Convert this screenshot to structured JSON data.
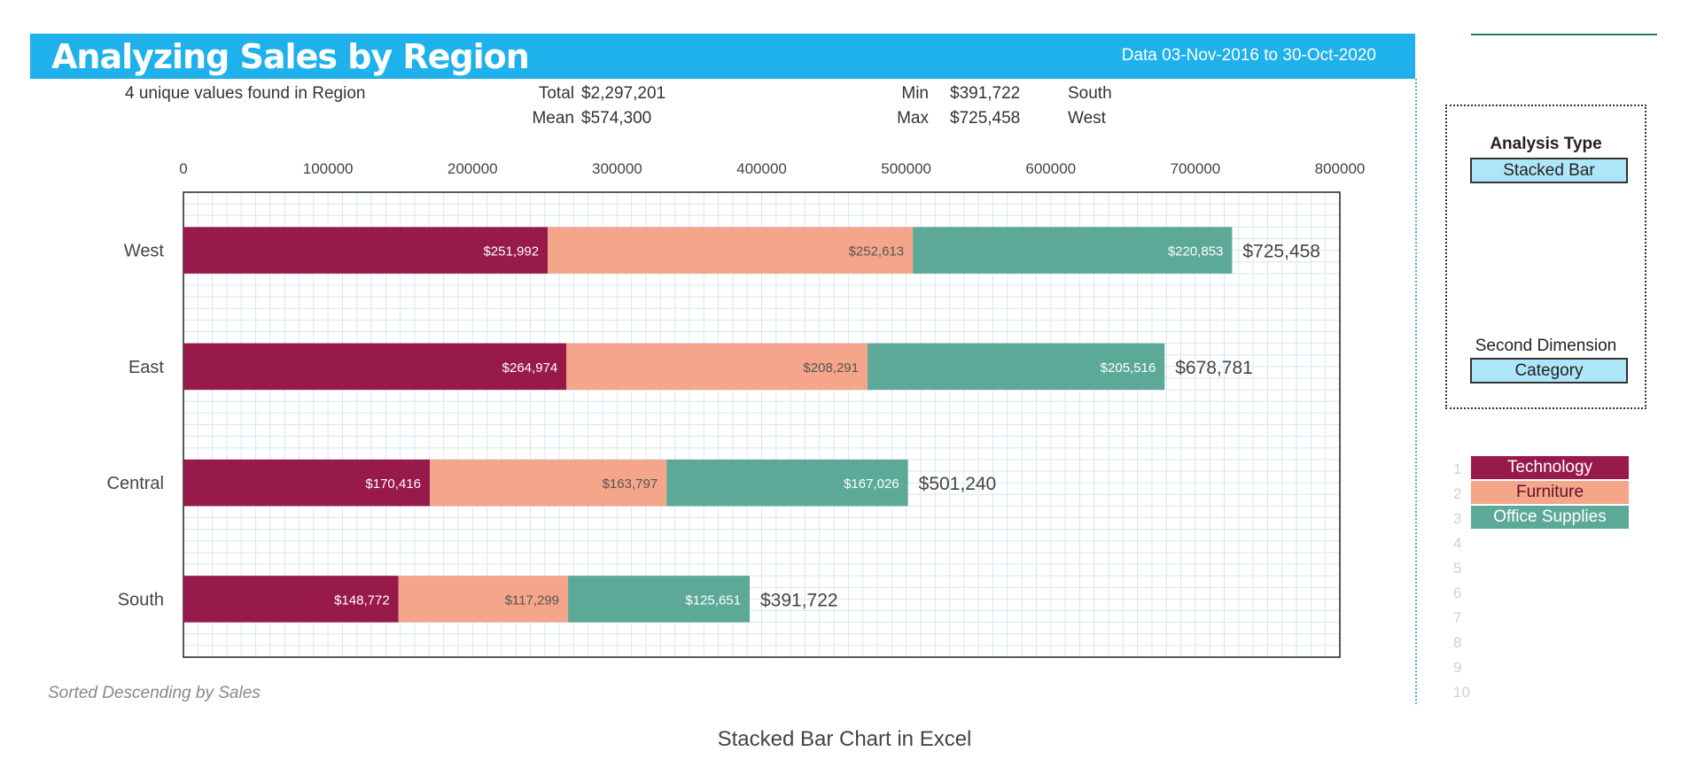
{
  "header": {
    "title": "Analyzing Sales by Region",
    "date_range": "Data 03-Nov-2016 to 30-Oct-2020"
  },
  "summary": {
    "unique_text": "4 unique values found in Region",
    "total_label": "Total",
    "total_value": "$2,297,201",
    "mean_label": "Mean",
    "mean_value": "$574,300",
    "min_label": "Min",
    "min_value": "$391,722",
    "min_region": "South",
    "max_label": "Max",
    "max_value": "$725,458",
    "max_region": "West"
  },
  "colors": {
    "header": "#1fb1eb",
    "technology": "#971a4a",
    "furniture": "#f4a58a",
    "office_supplies": "#5da998"
  },
  "chart_data": {
    "type": "bar",
    "orientation": "horizontal",
    "stacked": true,
    "categories": [
      "West",
      "East",
      "Central",
      "South"
    ],
    "series": [
      {
        "name": "Technology",
        "color": "#971a4a",
        "values": [
          251992,
          264974,
          170416,
          148772
        ],
        "labels": [
          "$251,992",
          "$264,974",
          "$170,416",
          "$148,772"
        ]
      },
      {
        "name": "Furniture",
        "color": "#f4a58a",
        "values": [
          252613,
          208291,
          163797,
          117299
        ],
        "labels": [
          "$252,613",
          "$208,291",
          "$163,797",
          "$117,299"
        ]
      },
      {
        "name": "Office Supplies",
        "color": "#5da998",
        "values": [
          220853,
          205516,
          167026,
          125651
        ],
        "labels": [
          "$220,853",
          "$205,516",
          "$167,026",
          "$125,651"
        ]
      }
    ],
    "totals": [
      "$725,458",
      "$678,781",
      "$501,240",
      "$391,722"
    ],
    "xlim": [
      0,
      800000
    ],
    "xticks": [
      "0",
      "100000",
      "200000",
      "300000",
      "400000",
      "500000",
      "600000",
      "700000",
      "800000"
    ],
    "x_axis_position": "top",
    "grid": true
  },
  "panel": {
    "analysis_type_label": "Analysis Type",
    "analysis_type_value": "Stacked Bar",
    "second_dimension_label": "Second Dimension",
    "second_dimension_value": "Category"
  },
  "legend_list": {
    "row_numbers": [
      "1",
      "2",
      "3",
      "4",
      "5",
      "6",
      "7",
      "8",
      "9",
      "10"
    ],
    "items": [
      "Technology",
      "Furniture",
      "Office Supplies"
    ]
  },
  "footnote": "Sorted Descending by Sales",
  "caption": "Stacked Bar Chart in Excel"
}
